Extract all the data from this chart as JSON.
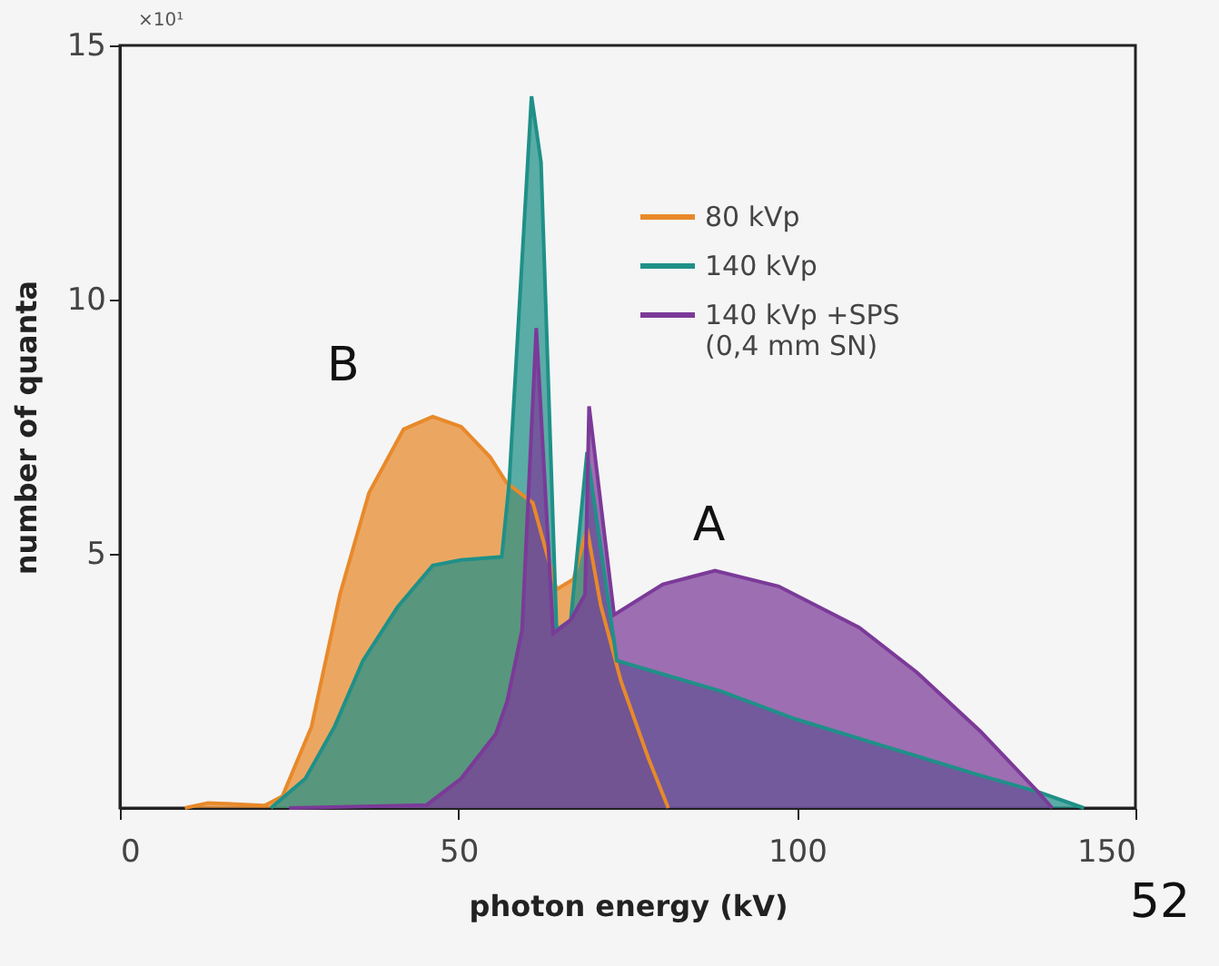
{
  "chart_data": {
    "type": "area",
    "xlabel": "photon energy (kV)",
    "ylabel": "number of quanta",
    "xlim": [
      0,
      150
    ],
    "xticks": [
      0,
      50,
      100,
      150
    ],
    "ylim": [
      0,
      15
    ],
    "yticks": [
      5,
      10,
      15
    ],
    "grid": false,
    "legend": "top right",
    "annotations": [
      "×10¹",
      "B",
      "A",
      "52"
    ],
    "series": [
      {
        "name": "80 kVp",
        "color": "#e8892a",
        "x": [
          9.6,
          13,
          21.4,
          24,
          28.3,
          32.5,
          36.8,
          41.9,
          46.2,
          50.4,
          54.7,
          57.1,
          61,
          64.5,
          67,
          69,
          71,
          74,
          78,
          81
        ],
        "values": [
          0,
          0.1,
          0.05,
          0.23,
          1.6,
          4.2,
          6.2,
          7.45,
          7.7,
          7.5,
          6.9,
          6.4,
          6.0,
          4.3,
          4.5,
          5.5,
          4,
          2.5,
          1,
          0
        ]
      },
      {
        "name": "140 kVp",
        "color": "#1f9088",
        "x": [
          22.3,
          27.4,
          31.7,
          35.9,
          41,
          46.2,
          50.4,
          56.4,
          57.5,
          60.8,
          62.2,
          64.5,
          66.6,
          69,
          73.4,
          88.7,
          99.8,
          114.3,
          127.1,
          135.6,
          142.4
        ],
        "values": [
          0,
          0.58,
          1.6,
          2.9,
          3.95,
          4.77,
          4.88,
          4.94,
          6.4,
          14.0,
          12.7,
          3.5,
          3.7,
          7.0,
          2.9,
          2.3,
          1.75,
          1.16,
          0.64,
          0.32,
          0
        ]
      },
      {
        "name": "140 kVp +SPS\n(0,4 mm SN)",
        "color": "#7b3a98",
        "x": [
          25,
          45.3,
          50.4,
          55.5,
          57.2,
          59.4,
          61.5,
          64,
          66.6,
          68.7,
          69.3,
          73,
          80.2,
          87.9,
          97.3,
          109.2,
          117.7,
          127.1,
          135.6,
          137.7
        ],
        "values": [
          0,
          0.06,
          0.58,
          1.45,
          2.1,
          3.5,
          9.44,
          3.43,
          3.7,
          4.2,
          7.9,
          3.8,
          4.4,
          4.67,
          4.36,
          3.55,
          2.67,
          1.51,
          0.32,
          0
        ]
      }
    ]
  }
}
